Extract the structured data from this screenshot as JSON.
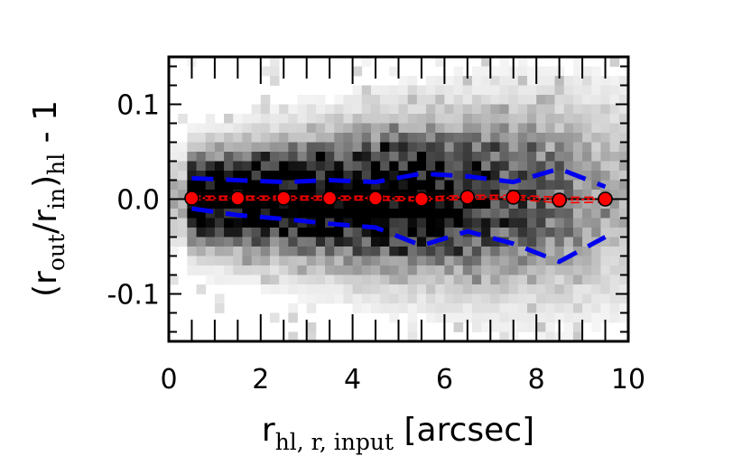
{
  "chart_data": {
    "type": "scatter",
    "xlim": [
      0,
      10
    ],
    "ylim": [
      -0.15,
      0.15
    ],
    "x_ticks": [
      0,
      2,
      4,
      6,
      8,
      10
    ],
    "y_ticks": [
      0.1,
      0.0,
      -0.1
    ],
    "x_tick_labels": [
      "0",
      "2",
      "4",
      "6",
      "8",
      "10"
    ],
    "y_tick_labels": [
      "0.1",
      "0.0",
      "-0.1"
    ],
    "xlabel": {
      "main": "r",
      "subscript": "hl, r, input",
      "unit": " [arcsec]"
    },
    "ylabel": {
      "open": "(r",
      "sub1": "out",
      "mid": "/r",
      "sub2": "in",
      "close": ")",
      "sub3": "hl",
      "tail": " - 1"
    },
    "reference_line": {
      "y": 0.0,
      "color": "#000000"
    },
    "background": "2D density histogram (greyscale) of individual galaxies; darkest at x < 5 and |y| < 0.03",
    "series": [
      {
        "style": "median",
        "color": "#ff0000",
        "marker": "circle",
        "x": [
          0.5,
          1.5,
          2.5,
          3.5,
          4.5,
          5.5,
          6.5,
          7.5,
          8.5,
          9.5
        ],
        "y": [
          0.001,
          0.001,
          0.001,
          0.001,
          0.001,
          0.0,
          0.002,
          0.002,
          -0.001,
          0.0
        ]
      },
      {
        "style": "error-upper",
        "color": "#ff0000",
        "x": [
          0.5,
          1.5,
          2.5,
          3.5,
          4.5,
          5.5,
          6.5,
          7.5,
          8.5,
          9.5
        ],
        "y": [
          0.003,
          0.003,
          0.003,
          0.003,
          0.003,
          0.002,
          0.004,
          0.004,
          0.002,
          0.002
        ]
      },
      {
        "style": "error-lower",
        "color": "#ff0000",
        "x": [
          0.5,
          1.5,
          2.5,
          3.5,
          4.5,
          5.5,
          6.5,
          7.5,
          8.5,
          9.5
        ],
        "y": [
          -0.001,
          -0.001,
          -0.001,
          -0.001,
          -0.001,
          -0.002,
          0.0,
          0.0,
          -0.004,
          -0.003
        ]
      },
      {
        "style": "upper-spread",
        "color": "#0000ee",
        "x": [
          0.5,
          1.5,
          2.5,
          3.5,
          4.5,
          5.5,
          6.5,
          7.5,
          8.5,
          9.5
        ],
        "y": [
          0.022,
          0.02,
          0.018,
          0.02,
          0.018,
          0.027,
          0.024,
          0.018,
          0.032,
          0.013
        ]
      },
      {
        "style": "lower-spread",
        "color": "#0000ee",
        "x": [
          0.5,
          1.5,
          2.5,
          3.5,
          4.5,
          5.5,
          6.5,
          7.5,
          8.5,
          9.5
        ],
        "y": [
          -0.01,
          -0.017,
          -0.021,
          -0.026,
          -0.03,
          -0.049,
          -0.034,
          -0.047,
          -0.066,
          -0.04
        ]
      }
    ]
  }
}
